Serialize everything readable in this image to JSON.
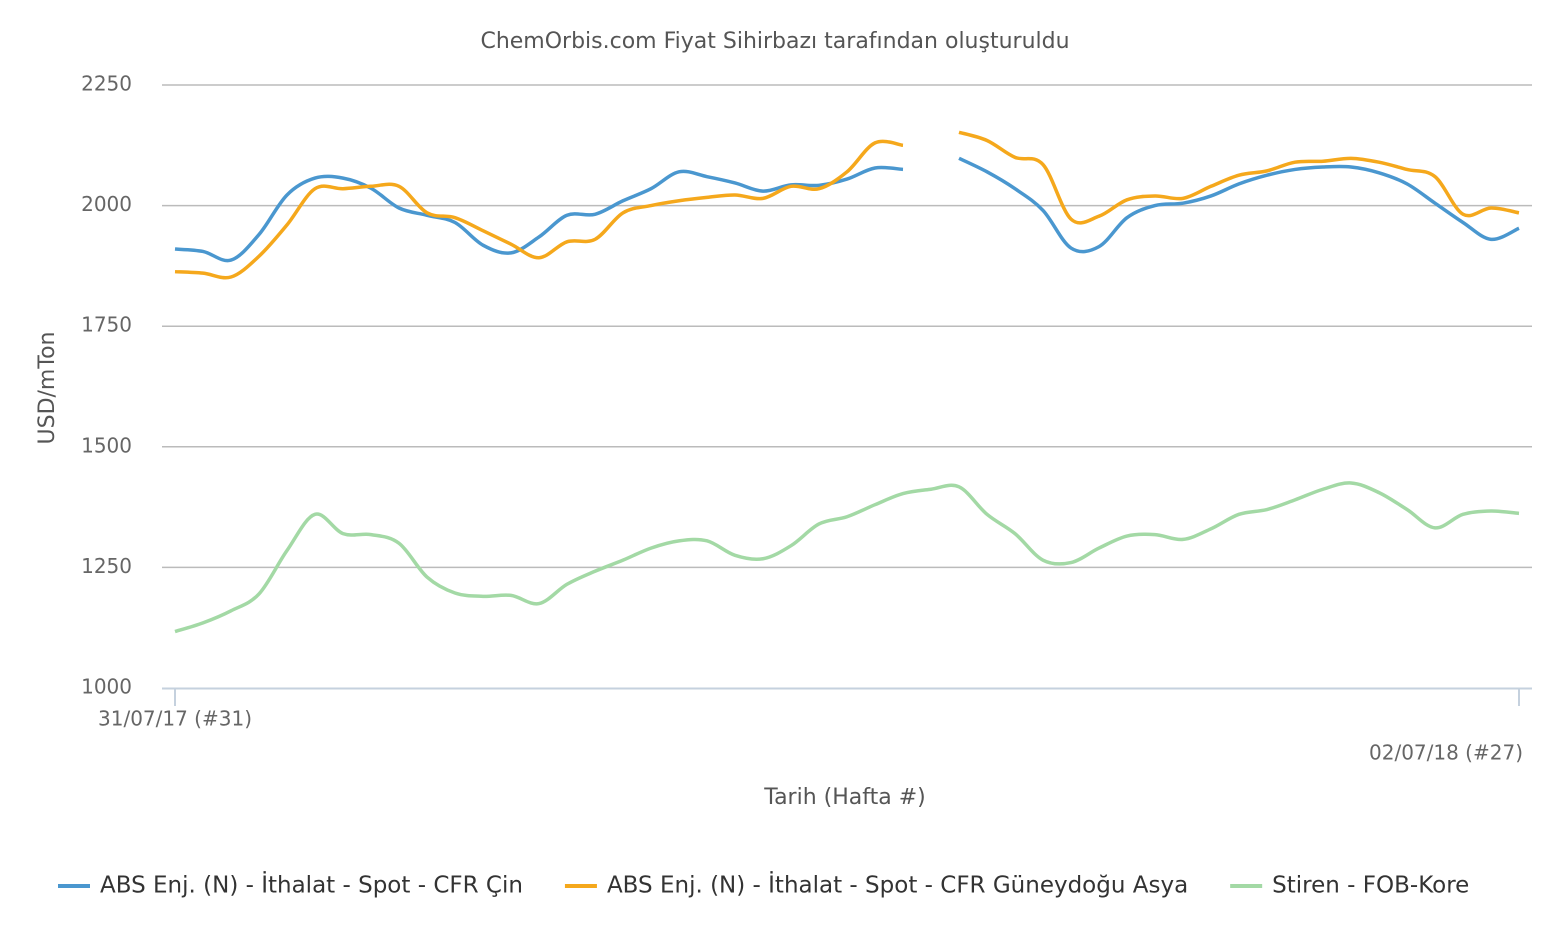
{
  "chart_data": {
    "type": "line",
    "title": "ChemOrbis.com Fiyat Sihirbazı tarafından oluşturuldu",
    "x_label": "Tarih (Hafta #)",
    "y_label": "USD/mTon",
    "categories": [
      "31/07/17 (#31)",
      null,
      null,
      null,
      null,
      null,
      null,
      null,
      null,
      null,
      null,
      null,
      null,
      null,
      null,
      null,
      null,
      null,
      null,
      null,
      null,
      null,
      null,
      null,
      null,
      null,
      null,
      null,
      null,
      null,
      null,
      null,
      null,
      null,
      null,
      null,
      null,
      null,
      null,
      null,
      null,
      null,
      null,
      null,
      null,
      null,
      null,
      null,
      "02/07/18 (#27)"
    ],
    "ylim": [
      1000,
      2250
    ],
    "yticks": [
      1000,
      1250,
      1500,
      1750,
      2000,
      2250
    ],
    "grid": true,
    "series": [
      {
        "name": "ABS Enj. (N) - İthalat - Spot - CFR Çin",
        "color": "#4a97cf",
        "values": [
          1910,
          1905,
          1887,
          1940,
          2022,
          2057,
          2057,
          2036,
          1995,
          1980,
          1965,
          1918,
          1902,
          1935,
          1980,
          1982,
          2010,
          2035,
          2070,
          2060,
          2047,
          2030,
          2043,
          2042,
          2055,
          2078,
          2075,
          null,
          2098,
          2070,
          2035,
          1990,
          1912,
          1915,
          1975,
          2000,
          2005,
          2020,
          2045,
          2063,
          2075,
          2080,
          2080,
          2068,
          2045,
          2005,
          1965,
          1930,
          1953
        ]
      },
      {
        "name": "ABS Enj. (N) - İthalat - Spot - CFR Güneydoğu Asya",
        "color": "#f5a81c",
        "values": [
          1863,
          1860,
          1852,
          1895,
          1960,
          2035,
          2035,
          2040,
          2040,
          1985,
          1975,
          1948,
          1920,
          1892,
          1925,
          1930,
          1985,
          2000,
          2010,
          2017,
          2022,
          2015,
          2040,
          2035,
          2070,
          2130,
          2125,
          null,
          2152,
          2135,
          2100,
          2085,
          1972,
          1978,
          2012,
          2020,
          2015,
          2040,
          2063,
          2072,
          2090,
          2092,
          2098,
          2090,
          2075,
          2060,
          1982,
          1995,
          1985
        ]
      },
      {
        "name": "Stiren - FOB-Kore",
        "color": "#a3d9a5",
        "values": [
          1117,
          1135,
          1160,
          1195,
          1285,
          1360,
          1320,
          1318,
          1300,
          1230,
          1197,
          1190,
          1192,
          1175,
          1215,
          1242,
          1265,
          1290,
          1305,
          1305,
          1275,
          1268,
          1295,
          1340,
          1355,
          1380,
          1403,
          1412,
          1417,
          1360,
          1320,
          1265,
          1260,
          1290,
          1315,
          1318,
          1308,
          1330,
          1360,
          1370,
          1390,
          1412,
          1425,
          1405,
          1370,
          1332,
          1360,
          1367,
          1362
        ]
      }
    ]
  }
}
